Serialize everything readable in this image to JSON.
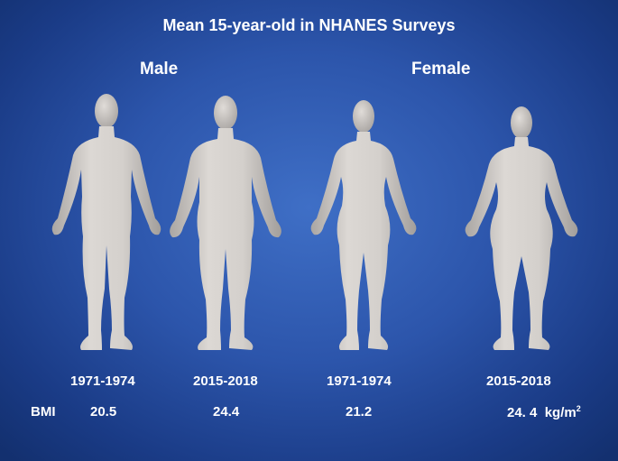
{
  "title": "Mean 15-year-old in NHANES Surveys",
  "groups": {
    "male": {
      "label": "Male",
      "figures": [
        {
          "period": "1971-1974",
          "bmi": "20.5"
        },
        {
          "period": "2015-2018",
          "bmi": "24.4"
        }
      ]
    },
    "female": {
      "label": "Female",
      "figures": [
        {
          "period": "1971-1974",
          "bmi": "21.2"
        },
        {
          "period": "2015-2018",
          "bmi": "24. 4"
        }
      ]
    }
  },
  "bmi_label": "BMI",
  "bmi_unit": "kg/m",
  "bmi_unit_exponent": "2",
  "colors": {
    "background": "#2c55ab",
    "body_figure": "#d8d3ce",
    "text": "#ffffff"
  }
}
